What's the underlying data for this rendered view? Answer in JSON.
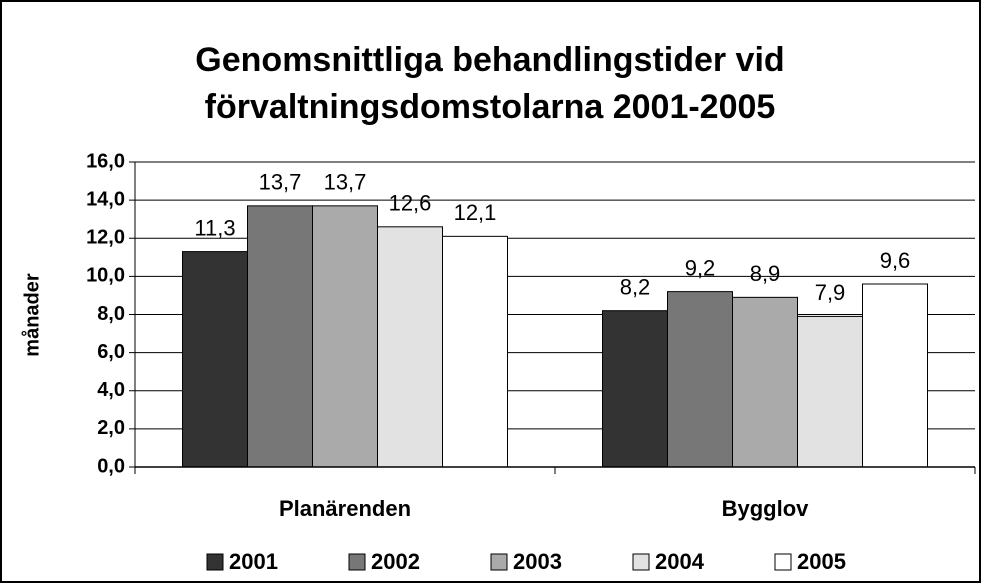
{
  "chart_data": {
    "type": "bar",
    "title": [
      "Genomsnittliga behandlingstider vid",
      "förvaltningsdomstolarna 2001-2005"
    ],
    "y_label": "månader",
    "categories": [
      "Planärenden",
      "Bygglov"
    ],
    "series": [
      {
        "name": "2001",
        "color": "#333333",
        "values": [
          11.3,
          8.2
        ],
        "value_labels": [
          "11,3",
          "8,2"
        ]
      },
      {
        "name": "2002",
        "color": "#777777",
        "values": [
          13.7,
          9.2
        ],
        "value_labels": [
          "13,7",
          "9,2"
        ]
      },
      {
        "name": "2003",
        "color": "#aaaaaa",
        "values": [
          13.7,
          8.9
        ],
        "value_labels": [
          "13,7",
          "8,9"
        ]
      },
      {
        "name": "2004",
        "color": "#e2e2e2",
        "values": [
          12.6,
          7.9
        ],
        "value_labels": [
          "12,6",
          "7,9"
        ]
      },
      {
        "name": "2005",
        "color": "#ffffff",
        "values": [
          12.1,
          9.6
        ],
        "value_labels": [
          "12,1",
          "9,6"
        ]
      }
    ],
    "ylim": [
      0,
      16
    ],
    "yticks": [
      {
        "value": 0,
        "label": "0,0"
      },
      {
        "value": 2,
        "label": "2,0"
      },
      {
        "value": 4,
        "label": "4,0"
      },
      {
        "value": 6,
        "label": "6,0"
      },
      {
        "value": 8,
        "label": "8,0"
      },
      {
        "value": 10,
        "label": "10,0"
      },
      {
        "value": 12,
        "label": "12,0"
      },
      {
        "value": 14,
        "label": "14,0"
      },
      {
        "value": 16,
        "label": "16,0"
      }
    ],
    "grid": true,
    "legend": "bottom"
  }
}
